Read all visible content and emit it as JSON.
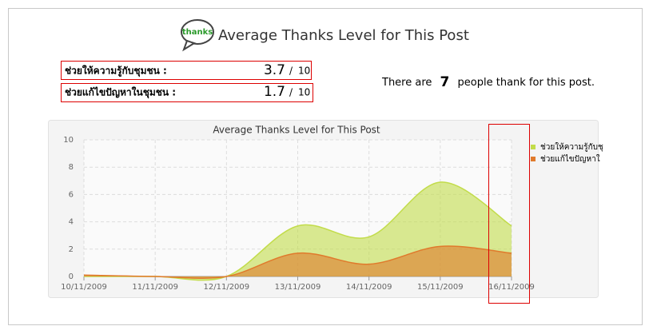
{
  "header": {
    "icon_text": "thanks",
    "title": "Average Thanks Level for This Post"
  },
  "ratings": [
    {
      "label": "ช่วยให้ความรู้กับชุมชน :",
      "score": 3.7,
      "separator": "/",
      "max": 10
    },
    {
      "label": "ช่วยแก้ไขปัญหาในชุมชน :",
      "score": 1.7,
      "separator": "/",
      "max": 10
    }
  ],
  "summary": {
    "prefix": "There are",
    "count": 7,
    "suffix": "people thank for this post."
  },
  "chart_data": {
    "type": "area",
    "title": "Average Thanks Level for This Post",
    "categories": [
      "10/11/2009",
      "11/11/2009",
      "12/11/2009",
      "13/11/2009",
      "14/11/2009",
      "15/11/2009",
      "16/11/2009"
    ],
    "series": [
      {
        "name": "ช่วยให้ความรู้กับชุ",
        "color": "#c2dc4a",
        "values": [
          0,
          0,
          0,
          3.7,
          2.9,
          6.9,
          3.7
        ]
      },
      {
        "name": "ช่วยแก้ไขปัญหาใ",
        "color": "#e07a2c",
        "values": [
          0.1,
          0,
          0,
          1.7,
          0.9,
          2.2,
          1.7
        ]
      }
    ],
    "ylim": [
      0,
      10
    ],
    "yticks": [
      0,
      2,
      4,
      6,
      8,
      10
    ],
    "grid": true
  }
}
